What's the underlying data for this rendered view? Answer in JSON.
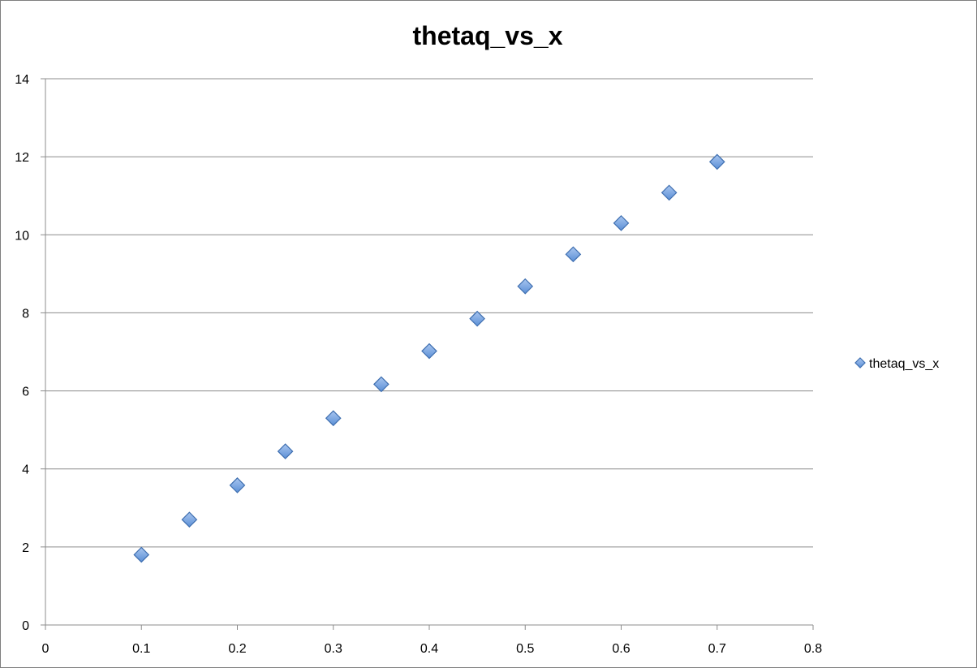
{
  "chart_data": {
    "type": "scatter",
    "title": "thetaq_vs_x",
    "xlabel": "",
    "ylabel": "",
    "xlim": [
      0,
      0.8
    ],
    "ylim": [
      0,
      14
    ],
    "x_ticks": [
      "0",
      "0.1",
      "0.2",
      "0.3",
      "0.4",
      "0.5",
      "0.6",
      "0.7",
      "0.8"
    ],
    "y_ticks": [
      "0",
      "2",
      "4",
      "6",
      "8",
      "10",
      "12",
      "14"
    ],
    "grid": "horizontal",
    "legend_position": "right",
    "marker": "diamond",
    "series_color": "#5b8fd6",
    "series": [
      {
        "name": "thetaq_vs_x",
        "x": [
          0.1,
          0.15,
          0.2,
          0.25,
          0.3,
          0.35,
          0.4,
          0.45,
          0.5,
          0.55,
          0.6,
          0.65,
          0.7
        ],
        "y": [
          1.8,
          2.7,
          3.58,
          4.45,
          5.3,
          6.17,
          7.02,
          7.85,
          8.68,
          9.5,
          10.3,
          11.08,
          11.87
        ]
      }
    ]
  }
}
